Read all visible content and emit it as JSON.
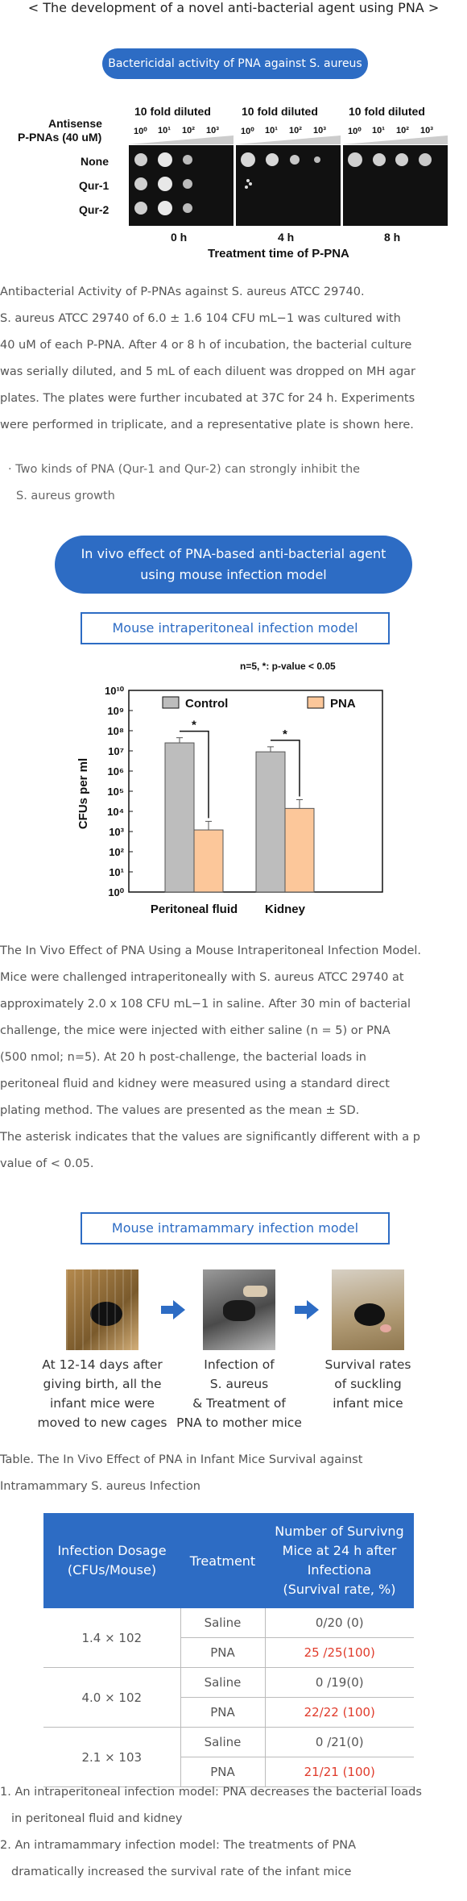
{
  "page_title": "< The development of a novel anti-bacterial agent using PNA >",
  "section1": {
    "pill": "Bactericidal activity of PNA against S. aureus",
    "figure": {
      "dilution_label": "10 fold diluted",
      "row_header_1": "Antisense",
      "row_header_2": "P-PNAs (40 uM)",
      "rows": [
        "None",
        "Qur-1",
        "Qur-2"
      ],
      "dilutions": [
        "10⁰",
        "10¹",
        "10²",
        "10³"
      ],
      "timepoints": [
        "0 h",
        "4 h",
        "8 h"
      ],
      "xlabel": "Treatment time of P-PNA"
    },
    "caption": [
      "Antibacterial Activity of P-PNAs against S. aureus ATCC 29740.",
      "S. aureus ATCC 29740 of 6.0 ± 1.6 104 CFU mL−1 was cultured with",
      "40 uM of each P-PNA. After 4 or 8 h of incubation, the bacterial culture",
      "was serially diluted, and 5 mL of each diluent was dropped on MH agar",
      "plates. The plates were further incubated at 37C for 24 h. Experiments",
      "were performed in triplicate, and a representative plate is shown here."
    ],
    "bullet": [
      "· Two kinds of PNA (Qur-1 and Qur-2) can strongly inhibit the",
      "S. aureus growth"
    ]
  },
  "section2": {
    "pill_line1": "In vivo effect of PNA-based anti-bacterial agent",
    "pill_line2": "using mouse infection model",
    "box1": "Mouse intraperitoneal infection model",
    "caption": [
      "The In Vivo Effect of PNA Using a Mouse Intraperitoneal Infection Model.",
      "Mice were challenged intraperitoneally with S. aureus ATCC 29740 at",
      "approximately 2.0 x 108 CFU mL−1 in saline. After 30 min of bacterial",
      "challenge, the mice were injected with either saline (n = 5) or PNA",
      "(500 nmol; n=5). At 20 h post-challenge, the bacterial loads in",
      "peritoneal fluid and kidney were measured using a standard direct",
      "plating method. The values are presented as the mean ± SD.",
      "The asterisk indicates that the values are significantly different with a p",
      "value of < 0.05."
    ],
    "box2": "Mouse intramammary infection model",
    "steps": [
      {
        "lines": [
          "At 12-14 days after",
          "giving birth, all the",
          "infant mice were",
          "moved to new cages"
        ]
      },
      {
        "lines": [
          "Infection of",
          "S. aureus",
          "& Treatment of",
          "PNA to mother mice"
        ]
      },
      {
        "lines": [
          "Survival rates",
          "of suckling",
          "infant mice"
        ]
      }
    ],
    "table_caption": [
      "Table. The In Vivo Effect of PNA in Infant Mice Survival against",
      "Intramammary S. aureus Infection"
    ],
    "table": {
      "headers": [
        "Infection Dosage (CFUs/Mouse)",
        "Treatment",
        "Number of Survivng Mice at 24 h after Infectiona (Survival rate, %)"
      ],
      "header_lines": {
        "h1": [
          "Infection Dosage",
          "(CFUs/Mouse)"
        ],
        "h2": [
          "Treatment"
        ],
        "h3": [
          "Number of Survivng",
          "Mice at 24 h after",
          "Infectiona",
          "(Survival rate, %)"
        ]
      },
      "groups": [
        {
          "dose": "1.4 × 102",
          "rows": [
            {
              "treatment": "Saline",
              "result": "0/20 (0)"
            },
            {
              "treatment": "PNA",
              "result": "25 /25(100)"
            }
          ]
        },
        {
          "dose": "4.0 × 102",
          "rows": [
            {
              "treatment": "Saline",
              "result": "0 /19(0)"
            },
            {
              "treatment": "PNA",
              "result": "22/22 (100)"
            }
          ]
        },
        {
          "dose": "2.1 × 103",
          "rows": [
            {
              "treatment": "Saline",
              "result": "0 /21(0)"
            },
            {
              "treatment": "PNA",
              "result": "21/21 (100)"
            }
          ]
        }
      ]
    },
    "conclusions": [
      "1. An intraperitoneal infection model: PNA decreases the bacterial loads",
      "in peritoneal fluid and kidney",
      "2. An intramammary infection model: The treatments of PNA",
      "dramatically increased the survival rate of the infant mice"
    ]
  },
  "chart_data": {
    "type": "bar",
    "title": "n=5, *: p-value < 0.05",
    "xlabel": "",
    "ylabel": "CFUs per ml",
    "yscale": "log",
    "ylim": [
      1,
      10000000000
    ],
    "yticks": [
      "10⁰",
      "10¹",
      "10²",
      "10³",
      "10⁴",
      "10⁵",
      "10⁶",
      "10⁷",
      "10⁸",
      "10⁹",
      "10¹⁰"
    ],
    "categories": [
      "Peritoneal fluid",
      "Kidney"
    ],
    "series": [
      {
        "name": "Control",
        "values": [
          25000000,
          9000000
        ],
        "errors": [
          45000000,
          16000000
        ],
        "color": "#bdbdbd"
      },
      {
        "name": "PNA",
        "values": [
          1200,
          14000
        ],
        "errors": [
          3200,
          38000
        ],
        "color": "#fcc79a"
      }
    ],
    "significance": [
      "*",
      "*"
    ],
    "legend": "top"
  },
  "colors": {
    "accent": "#2d6cc4",
    "highlight": "#e03b2b"
  }
}
